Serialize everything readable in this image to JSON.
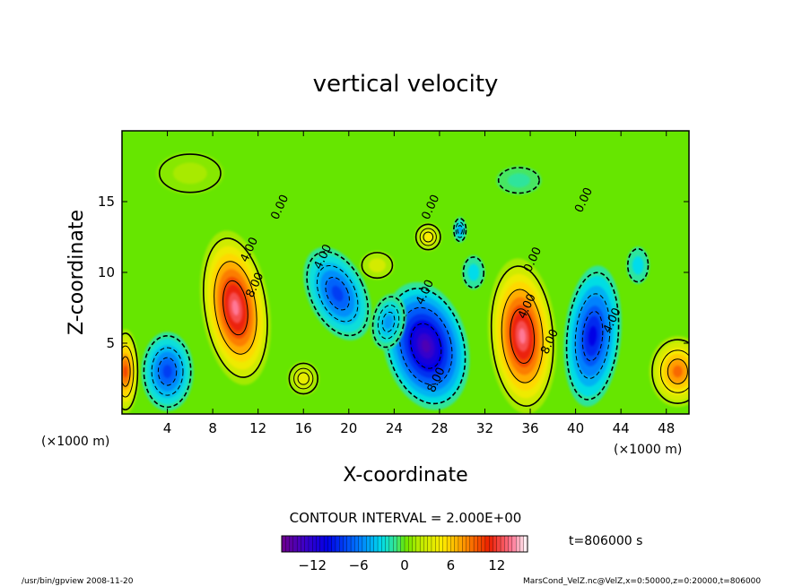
{
  "chart_data": {
    "type": "heatmap",
    "title": "vertical velocity",
    "xlabel": "X-coordinate",
    "ylabel": "Z-coordinate",
    "x_unit_left": "(×1000 m)",
    "x_unit_right": "(×1000 m)",
    "xlim": [
      0,
      50
    ],
    "ylim": [
      0,
      20
    ],
    "xticks": [
      4,
      8,
      12,
      16,
      20,
      24,
      28,
      32,
      36,
      40,
      44,
      48
    ],
    "yticks": [
      5,
      10,
      15
    ],
    "contour_labels": [
      {
        "text": "0.00",
        "x": 14.2,
        "z": 14.5
      },
      {
        "text": "4.00",
        "x": 11.5,
        "z": 11.5
      },
      {
        "text": "8.00",
        "x": 12.0,
        "z": 9.0
      },
      {
        "text": "4.00",
        "x": 18.0,
        "z": 11.0
      },
      {
        "text": "0.00",
        "x": 27.5,
        "z": 14.5
      },
      {
        "text": "0.00",
        "x": 36.5,
        "z": 10.8
      },
      {
        "text": "4.00",
        "x": 27.0,
        "z": 8.5
      },
      {
        "text": "4.00",
        "x": 36.0,
        "z": 7.5
      },
      {
        "text": "8.00",
        "x": 38.0,
        "z": 5.0
      },
      {
        "text": "4.00",
        "x": 43.5,
        "z": 6.5
      },
      {
        "text": "8.00",
        "x": 28.0,
        "z": 2.3
      },
      {
        "text": "0.00",
        "x": 41.0,
        "z": 15.0
      }
    ],
    "cells": [
      {
        "x": 10.0,
        "z": 7.5,
        "rx": 3.0,
        "rz": 5.5,
        "v": 14,
        "rot": -8
      },
      {
        "x": 35.3,
        "z": 5.5,
        "rx": 3.0,
        "rz": 5.5,
        "v": 14,
        "rot": -4
      },
      {
        "x": 26.8,
        "z": 4.8,
        "rx": 3.7,
        "rz": 4.6,
        "v": -14,
        "rot": -14
      },
      {
        "x": 41.5,
        "z": 5.5,
        "rx": 2.5,
        "rz": 5.0,
        "v": -10,
        "rot": 5
      },
      {
        "x": 19.0,
        "z": 8.5,
        "rx": 2.6,
        "rz": 3.5,
        "v": -8,
        "rot": -25
      },
      {
        "x": 4.0,
        "z": 3.0,
        "rx": 2.3,
        "rz": 2.8,
        "v": -8,
        "rot": 0
      },
      {
        "x": 0.3,
        "z": 3.0,
        "rx": 1.2,
        "rz": 3.0,
        "v": 10,
        "rot": 0
      },
      {
        "x": 49.0,
        "z": 3.0,
        "rx": 2.5,
        "rz": 2.5,
        "v": 9,
        "rot": 0
      },
      {
        "x": 23.5,
        "z": 6.5,
        "rx": 1.5,
        "rz": 2.0,
        "v": -5,
        "rot": 10
      },
      {
        "x": 16.0,
        "z": 2.5,
        "rx": 1.4,
        "rz": 1.2,
        "v": 4,
        "rot": 0
      },
      {
        "x": 27.0,
        "z": 12.5,
        "rx": 1.2,
        "rz": 1.0,
        "v": 5,
        "rot": 0
      },
      {
        "x": 29.8,
        "z": 13.0,
        "rx": 0.6,
        "rz": 0.9,
        "v": -5,
        "rot": 0
      },
      {
        "x": 22.5,
        "z": 10.5,
        "rx": 1.5,
        "rz": 1.0,
        "v": 3,
        "rot": 0
      },
      {
        "x": 31.0,
        "z": 10.0,
        "rx": 1.0,
        "rz": 1.2,
        "v": -3,
        "rot": 0
      },
      {
        "x": 45.5,
        "z": 10.5,
        "rx": 1.0,
        "rz": 1.3,
        "v": -3,
        "rot": 0
      },
      {
        "x": 6.0,
        "z": 17.0,
        "rx": 3.0,
        "rz": 1.5,
        "v": 1.5,
        "rot": 0
      },
      {
        "x": 35.0,
        "z": 16.5,
        "rx": 2.0,
        "rz": 1.0,
        "v": -1.5,
        "rot": 0
      }
    ],
    "colorbar": {
      "min": -16,
      "max": 16,
      "tick_values": [
        -12,
        -6,
        0,
        6,
        12
      ],
      "tick_labels": [
        "−12",
        "−6",
        "0",
        "6",
        "12"
      ]
    },
    "contour_interval_text": "CONTOUR INTERVAL = 2.000E+00",
    "time_label": "t=806000 s",
    "footer_left": "/usr/bin/gpview   2008-11-20",
    "footer_right": "MarsCond_VelZ.nc@VelZ,x=0:50000,z=0:20000,t=806000"
  }
}
